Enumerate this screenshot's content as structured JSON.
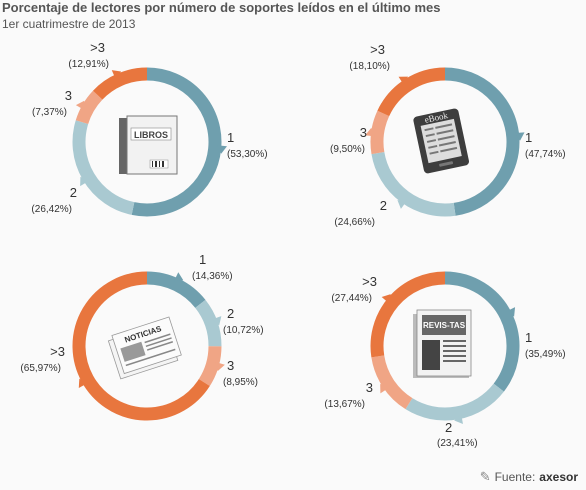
{
  "header": {
    "title": "Porcentaje de lectores por número de soportes leídos en el último mes",
    "subtitle": "1er cuatrimestre de 2013"
  },
  "source": {
    "label": "Fuente:",
    "brand": "axesor"
  },
  "colors": {
    "one": "#6f9fae",
    "two": "#a9c9d1",
    "three": "#f0a585",
    "more": "#e8763e"
  },
  "icons": {
    "libros_label": "LIBROS",
    "ebook_label": "eBook",
    "noticias_label": "NOTICIAS",
    "revistas_label": "REVIS-TAS"
  },
  "chart_data": [
    {
      "type": "pie",
      "name": "libros",
      "categories": [
        "1",
        "2",
        "3",
        ">3"
      ],
      "values": [
        53.3,
        26.42,
        7.37,
        12.91
      ],
      "labels": [
        "(53,30%)",
        "(26,42%)",
        "(7,37%)",
        "(12,91%)"
      ]
    },
    {
      "type": "pie",
      "name": "ebook",
      "categories": [
        "1",
        "2",
        "3",
        ">3"
      ],
      "values": [
        47.74,
        24.66,
        9.5,
        18.1
      ],
      "labels": [
        "(47,74%)",
        "(24,66%)",
        "(9,50%)",
        "(18,10%)"
      ]
    },
    {
      "type": "pie",
      "name": "noticias",
      "categories": [
        "1",
        "2",
        "3",
        ">3"
      ],
      "values": [
        14.36,
        10.72,
        8.95,
        65.97
      ],
      "labels": [
        "(14,36%)",
        "(10,72%)",
        "(8,95%)",
        "(65,97%)"
      ]
    },
    {
      "type": "pie",
      "name": "revistas",
      "categories": [
        "1",
        "2",
        "3",
        ">3"
      ],
      "values": [
        35.49,
        23.41,
        13.67,
        27.44
      ],
      "labels": [
        "(35,49%)",
        "(23,41%)",
        "(13,67%)",
        "(27,44%)"
      ]
    }
  ]
}
